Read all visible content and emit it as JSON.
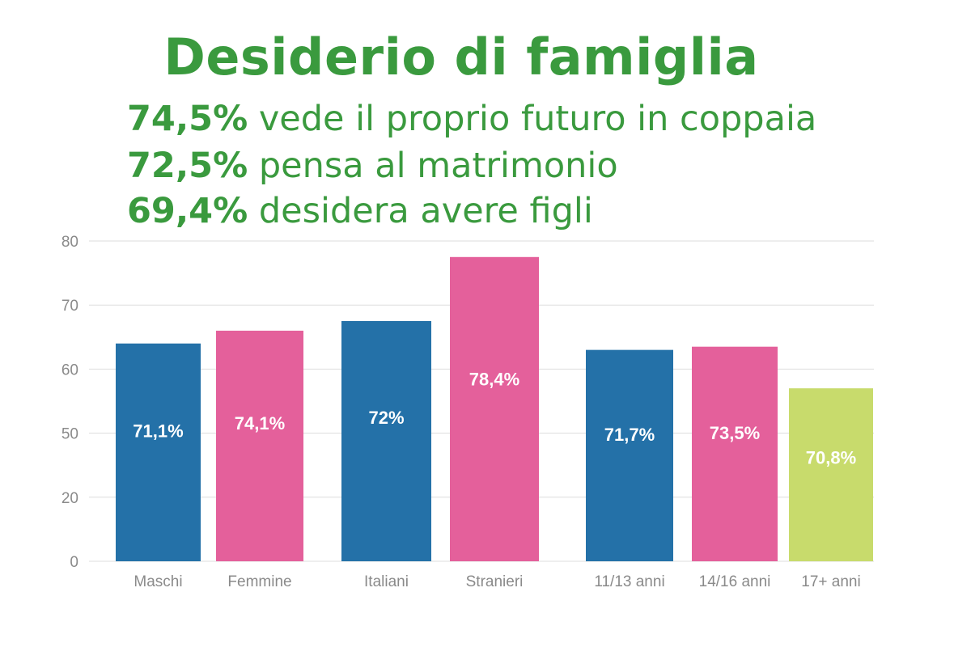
{
  "title": "Desiderio di famiglia",
  "stats": [
    {
      "value": "74,5%",
      "text": " vede il proprio futuro in coppaia"
    },
    {
      "value": "72,5%",
      "text": " pensa al matrimonio"
    },
    {
      "value": "69,4%",
      "text": " desidera avere figli"
    }
  ],
  "colors": {
    "title": "#3a9a3e",
    "blue": "#2471a8",
    "pink": "#e4609b",
    "lime": "#c8db6c",
    "grid": "#dddddd"
  },
  "chart_data": {
    "type": "bar",
    "title": "",
    "xlabel": "",
    "ylabel": "",
    "y_tick_labels": [
      0,
      20,
      50,
      60,
      70,
      80
    ],
    "grid": true,
    "legend": "none",
    "categories": [
      "Maschi",
      "Femmine",
      "Italiani",
      "Stranieri",
      "11/13 anni",
      "14/16 anni",
      "17+ anni"
    ],
    "groups": [
      [
        0,
        1
      ],
      [
        2,
        3
      ],
      [
        4,
        5,
        6
      ]
    ],
    "data_labels": [
      "71,1%",
      "74,1%",
      "72%",
      "78,4%",
      "71,7%",
      "73,5%",
      "70,8%"
    ],
    "values": [
      71.1,
      74.1,
      72,
      78.4,
      71.7,
      73.5,
      70.8
    ],
    "bar_heights_on_axis": [
      64,
      66,
      67.5,
      77.5,
      63,
      63.5,
      57
    ],
    "bar_colors": [
      "#2471a8",
      "#e4609b",
      "#2471a8",
      "#e4609b",
      "#2471a8",
      "#e4609b",
      "#c8db6c"
    ]
  }
}
